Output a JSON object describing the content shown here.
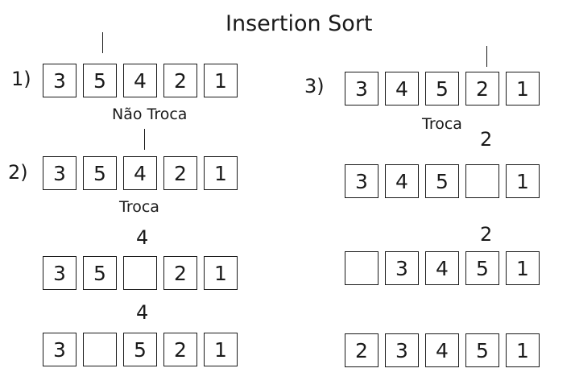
{
  "title": "Insertion Sort",
  "left": {
    "steps": [
      {
        "number": "1)",
        "cells": [
          "3",
          "5",
          "4",
          "2",
          "1"
        ],
        "caption": "Não Troca"
      },
      {
        "number": "2)",
        "cells": [
          "3",
          "5",
          "4",
          "2",
          "1"
        ],
        "caption": "Troca"
      }
    ],
    "sub_rows": [
      {
        "held": "4",
        "cells": [
          "3",
          "5",
          "",
          "2",
          "1"
        ]
      },
      {
        "held": "4",
        "cells": [
          "3",
          "",
          "5",
          "2",
          "1"
        ]
      }
    ]
  },
  "right": {
    "step": {
      "number": "3)",
      "cells": [
        "3",
        "4",
        "5",
        "2",
        "1"
      ],
      "caption": "Troca"
    },
    "sub_rows": [
      {
        "held": "2",
        "cells": [
          "3",
          "4",
          "5",
          "",
          "1"
        ]
      },
      {
        "held": "2",
        "cells": [
          "",
          "3",
          "4",
          "5",
          "1"
        ]
      },
      {
        "held": "",
        "cells": [
          "2",
          "3",
          "4",
          "5",
          "1"
        ]
      }
    ]
  }
}
